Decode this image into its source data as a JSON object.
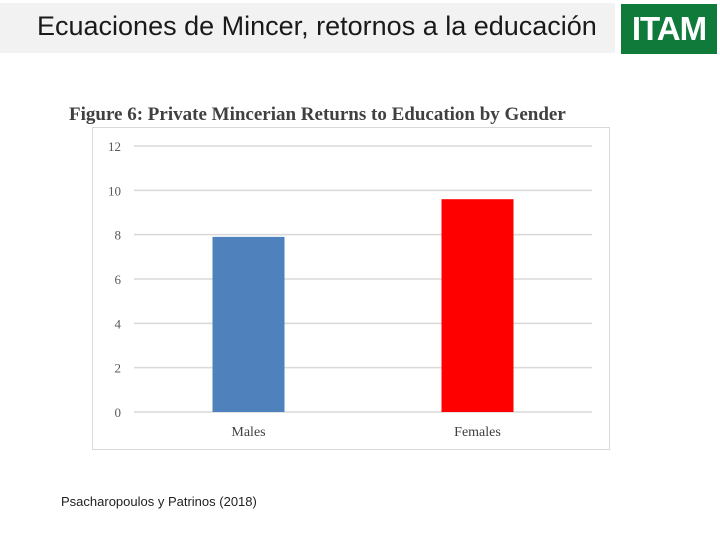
{
  "slide": {
    "title": "Ecuaciones de Mincer, retornos a la educación",
    "source": "Psacharopoulos y Patrinos (2018)"
  },
  "logo": {
    "text": "ITAM",
    "color": "#0f7a3a"
  },
  "chart_data": {
    "type": "bar",
    "title": "Figure 6: Private Mincerian Returns to Education by Gender",
    "xlabel": "",
    "ylabel": "",
    "categories": [
      "Males",
      "Females"
    ],
    "values": [
      7.9,
      9.6
    ],
    "colors": [
      "#4f81bd",
      "#ff0000"
    ],
    "ylim": [
      0,
      12
    ],
    "yticks": [
      0,
      2,
      4,
      6,
      8,
      10,
      12
    ],
    "grid": true,
    "legend": "none"
  }
}
